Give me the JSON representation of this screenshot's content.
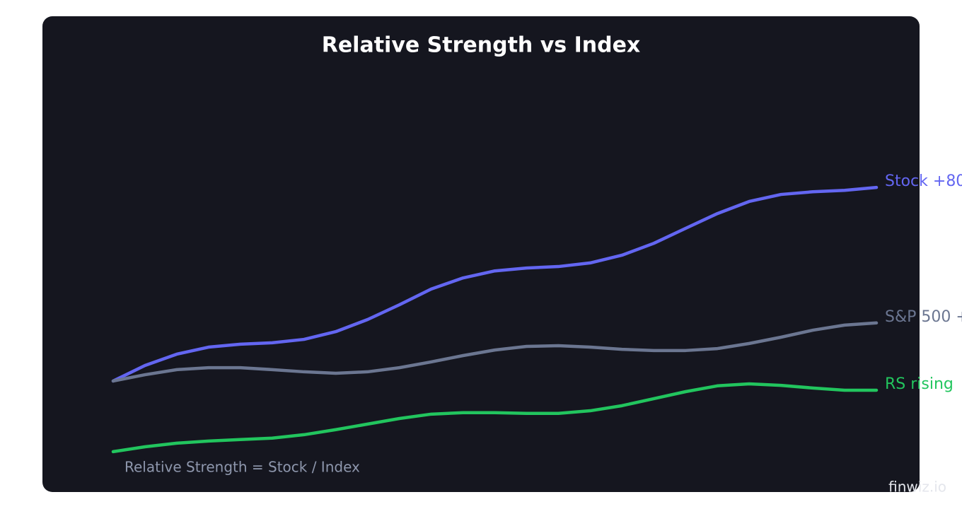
{
  "chart_data": {
    "type": "line",
    "title": "Relative Strength vs Index",
    "annotation": "Relative Strength = Stock / Index",
    "watermark": "finwiz.io",
    "ylim": [
      62,
      230
    ],
    "series": [
      {
        "name": "Stock +80",
        "color": "#6366f1",
        "values": [
          100,
          106.4,
          111.1,
          114.0,
          115.2,
          115.8,
          117.2,
          120.4,
          125.4,
          131.5,
          138.0,
          142.6,
          145.5,
          146.7,
          147.3,
          148.8,
          152.0,
          156.9,
          163.1,
          169.2,
          174.2,
          177.1,
          178.2,
          178.8,
          180
        ]
      },
      {
        "name": "S&P 500 +",
        "color": "#6b7691",
        "values": [
          100,
          102.6,
          104.7,
          105.5,
          105.5,
          104.7,
          103.8,
          103.2,
          103.8,
          105.5,
          107.9,
          110.5,
          112.8,
          114.3,
          114.6,
          114.0,
          113.1,
          112.6,
          112.6,
          113.4,
          115.5,
          118.1,
          121.0,
          123.1,
          124
        ]
      },
      {
        "name": "RS rising",
        "color": "#22c55e",
        "values": [
          70.8,
          72.8,
          74.3,
          75.2,
          75.8,
          76.4,
          77.8,
          79.9,
          82.2,
          84.5,
          86.3,
          86.9,
          86.9,
          86.6,
          86.6,
          87.7,
          89.8,
          92.7,
          95.6,
          98.0,
          98.8,
          98.2,
          97.1,
          96.2,
          96.2
        ]
      }
    ]
  }
}
